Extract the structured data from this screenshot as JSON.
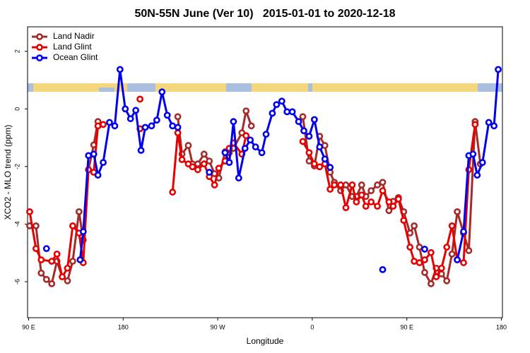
{
  "chart_data": {
    "type": "line",
    "title": "50N-55N June (Ver 10)   2015-01-01 to 2020-12-18",
    "x_label": "Longitude",
    "y_label": "XCO2 - MLO trend (ppm)",
    "xlim": [
      89,
      541
    ],
    "ylim": [
      -7.25,
      2.85
    ],
    "xticks": [
      {
        "value": 90,
        "label": "90 E"
      },
      {
        "value": 180,
        "label": "180"
      },
      {
        "value": 270,
        "label": "90 W"
      },
      {
        "value": 360,
        "label": "0"
      },
      {
        "value": 450,
        "label": "90 E"
      },
      {
        "value": 540,
        "label": "180"
      }
    ],
    "yticks": [
      2,
      0,
      -2,
      -4,
      -6
    ],
    "grid": false,
    "legend_position": "top-left",
    "series": [
      {
        "name": "Land Nadir",
        "color": "#a52a2a",
        "x": [
          91,
          97,
          102,
          107,
          112,
          117,
          122,
          127,
          132,
          138,
          142,
          147,
          152,
          156,
          null,
          232,
          236,
          242,
          246,
          251,
          257,
          262,
          267,
          271,
          277,
          281,
          285,
          293,
          297,
          302,
          null,
          351,
          357,
          362,
          367,
          372,
          377,
          381,
          387,
          392,
          398,
          402,
          407,
          411,
          416,
          422,
          427,
          433,
          437,
          442,
          447,
          453,
          457,
          462,
          467,
          473,
          478,
          483,
          488,
          493,
          498,
          504,
          509,
          515,
          520
        ],
        "values": [
          -4.06,
          -4.06,
          -5.7,
          -5.92,
          -6.07,
          -5.29,
          -5.83,
          -5.97,
          -5.29,
          -3.57,
          -4.55,
          -2.11,
          -1.25,
          -0.44,
          null,
          -0.27,
          -1.57,
          -1.27,
          -1.91,
          -1.91,
          -1.57,
          -1.81,
          -2.25,
          -2.4,
          -1.49,
          -1.52,
          -1.37,
          -0.83,
          -0.07,
          -0.59,
          null,
          -0.27,
          -1.81,
          -1.98,
          -0.95,
          -1.27,
          -2.2,
          -2.55,
          -2.84,
          -2.64,
          -3.04,
          -3.04,
          -2.64,
          -3.04,
          -2.84,
          -2.64,
          -2.55,
          -3.53,
          -3.21,
          -3.08,
          -3.57,
          -4.31,
          -4.06,
          -4.8,
          -5.68,
          -6.07,
          -5.53,
          -5.73,
          -5.97,
          -5.04,
          -3.57,
          -4.31,
          -4.92,
          -0.44,
          -1.91
        ]
      },
      {
        "name": "Land Glint",
        "color": "#e60000",
        "x": [
          91,
          97,
          102,
          112,
          117,
          122,
          127,
          132,
          138,
          142,
          147,
          152,
          156,
          161,
          null,
          196,
          null,
          196,
          null,
          227,
          232,
          236,
          242,
          246,
          251,
          257,
          262,
          267,
          271,
          277,
          281,
          285,
          293,
          297,
          null,
          351,
          357,
          362,
          367,
          372,
          377,
          381,
          387,
          392,
          398,
          402,
          407,
          411,
          416,
          422,
          427,
          433,
          437,
          442,
          447,
          453,
          457,
          462,
          467,
          473,
          478,
          483,
          488,
          493,
          498,
          504,
          509,
          515
        ],
        "values": [
          -3.57,
          -4.85,
          -5.24,
          -5.29,
          -5.04,
          -5.83,
          -5.53,
          -4.06,
          -4.31,
          -5.34,
          -2.11,
          -2.2,
          -0.59,
          -0.54,
          null,
          0.34,
          null,
          -0.69,
          null,
          -2.89,
          -0.83,
          -1.76,
          -1.91,
          -2.01,
          -2.11,
          -1.91,
          -2.35,
          -2.64,
          -2.06,
          -1.81,
          -1.37,
          -1.18,
          -1.57,
          -0.93,
          null,
          -1.13,
          -1.52,
          -1.91,
          -2.01,
          -1.91,
          -2.79,
          -2.64,
          -2.64,
          -3.43,
          -2.64,
          -3.23,
          -2.99,
          -3.38,
          -3.23,
          -3.38,
          -2.84,
          -3.23,
          -3.38,
          -3.13,
          -3.87,
          -4.8,
          -5.29,
          -5.34,
          -5.24,
          -4.99,
          -5.83,
          -5.53,
          -4.8,
          -4.06,
          -5.24,
          -5.34,
          -2.11,
          -0.54
        ]
      },
      {
        "name": "Ocean Glint",
        "color": "#0000ee",
        "x": [
          107,
          null,
          139,
          142,
          147,
          152,
          156,
          161,
          167,
          172,
          177,
          182,
          187,
          192,
          197,
          201,
          207,
          212,
          217,
          222,
          227,
          232,
          null,
          262,
          null,
          277,
          281,
          285,
          290,
          296,
          301,
          306,
          312,
          316,
          322,
          326,
          331,
          336,
          341,
          347,
          352,
          357,
          362,
          367,
          372,
          377,
          null,
          427,
          null,
          467,
          null,
          498,
          504,
          509,
          513,
          517,
          522,
          528,
          533,
          537
        ],
        "values": [
          -4.85,
          null,
          -5.24,
          -4.26,
          -1.62,
          -1.57,
          -2.3,
          -1.86,
          -0.47,
          -0.59,
          1.37,
          0,
          -0.34,
          -0.05,
          -1.44,
          -0.64,
          -0.59,
          -0.39,
          0.59,
          -0.22,
          -0.59,
          -0.64,
          null,
          -2.2,
          null,
          -1.52,
          -1.86,
          -0.44,
          -2.4,
          -1.37,
          -1.08,
          -1.32,
          -1.52,
          -0.88,
          -0.15,
          0.15,
          0.27,
          -0.1,
          -0.1,
          -0.44,
          -0.76,
          -0.95,
          -0.37,
          -1.32,
          -1.74,
          -2.03,
          null,
          -5.58,
          null,
          -4.87,
          null,
          -5.24,
          -4.26,
          -1.62,
          -1.57,
          -2.3,
          -1.86,
          -0.47,
          -0.59,
          1.37
        ]
      }
    ]
  }
}
